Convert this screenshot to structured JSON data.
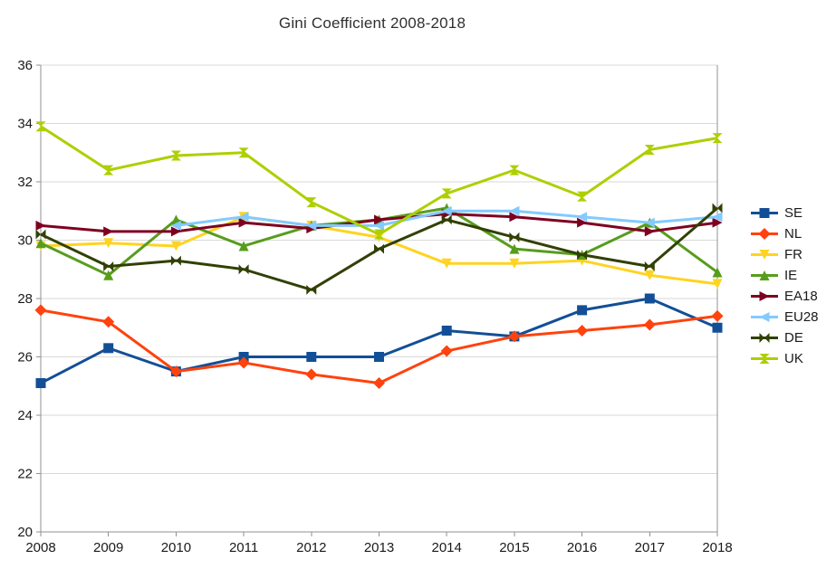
{
  "title": "Gini Coefficient 2008-2018",
  "palette": {
    "grid": "#d9d9d9",
    "axis": "#919191",
    "label_text": "#1a1a1a",
    "title_text": "#303030"
  },
  "chart_data": {
    "type": "line",
    "title": "Gini Coefficient 2008-2018",
    "xlabel": "",
    "ylabel": "",
    "ylim": [
      20,
      36
    ],
    "y_ticks": [
      20,
      22,
      24,
      26,
      28,
      30,
      32,
      34,
      36
    ],
    "grid": "horizontal",
    "legend_position": "right",
    "categories": [
      "2008",
      "2009",
      "2010",
      "2011",
      "2012",
      "2013",
      "2014",
      "2015",
      "2016",
      "2017",
      "2018"
    ],
    "series": [
      {
        "name": "SE",
        "color": "#124F96",
        "marker": "square",
        "values": [
          25.1,
          26.3,
          25.5,
          26.0,
          26.0,
          26.0,
          26.9,
          26.7,
          27.6,
          28.0,
          27.0
        ]
      },
      {
        "name": "NL",
        "color": "#FF420E",
        "marker": "diamond",
        "values": [
          27.6,
          27.2,
          25.5,
          25.8,
          25.4,
          25.1,
          26.2,
          26.7,
          26.9,
          27.1,
          27.4
        ]
      },
      {
        "name": "FR",
        "color": "#FFD320",
        "marker": "triangle-down",
        "values": [
          29.8,
          29.9,
          29.8,
          30.8,
          30.5,
          30.1,
          29.2,
          29.2,
          29.3,
          28.8,
          28.5
        ]
      },
      {
        "name": "IE",
        "color": "#579D1C",
        "marker": "triangle-up",
        "values": [
          29.9,
          28.8,
          30.7,
          29.8,
          30.5,
          30.7,
          31.1,
          29.7,
          29.5,
          30.6,
          28.9
        ]
      },
      {
        "name": "EA18",
        "color": "#7E0021",
        "marker": "triangle-right",
        "values": [
          30.5,
          30.3,
          30.3,
          30.6,
          30.4,
          30.7,
          30.9,
          30.8,
          30.6,
          30.3,
          30.6
        ]
      },
      {
        "name": "EU28",
        "color": "#83CAFF",
        "marker": "triangle-left",
        "values": [
          null,
          null,
          30.5,
          30.8,
          30.5,
          30.5,
          31.0,
          31.0,
          30.8,
          30.6,
          30.8
        ]
      },
      {
        "name": "DE",
        "color": "#314004",
        "marker": "bowtie",
        "values": [
          30.2,
          29.1,
          29.3,
          29.0,
          28.3,
          29.7,
          30.7,
          30.1,
          29.5,
          29.1,
          31.1
        ]
      },
      {
        "name": "UK",
        "color": "#AECF00",
        "marker": "hourglass",
        "values": [
          33.9,
          32.4,
          32.9,
          33.0,
          31.3,
          30.2,
          31.6,
          32.4,
          31.5,
          33.1,
          33.5
        ]
      }
    ]
  }
}
